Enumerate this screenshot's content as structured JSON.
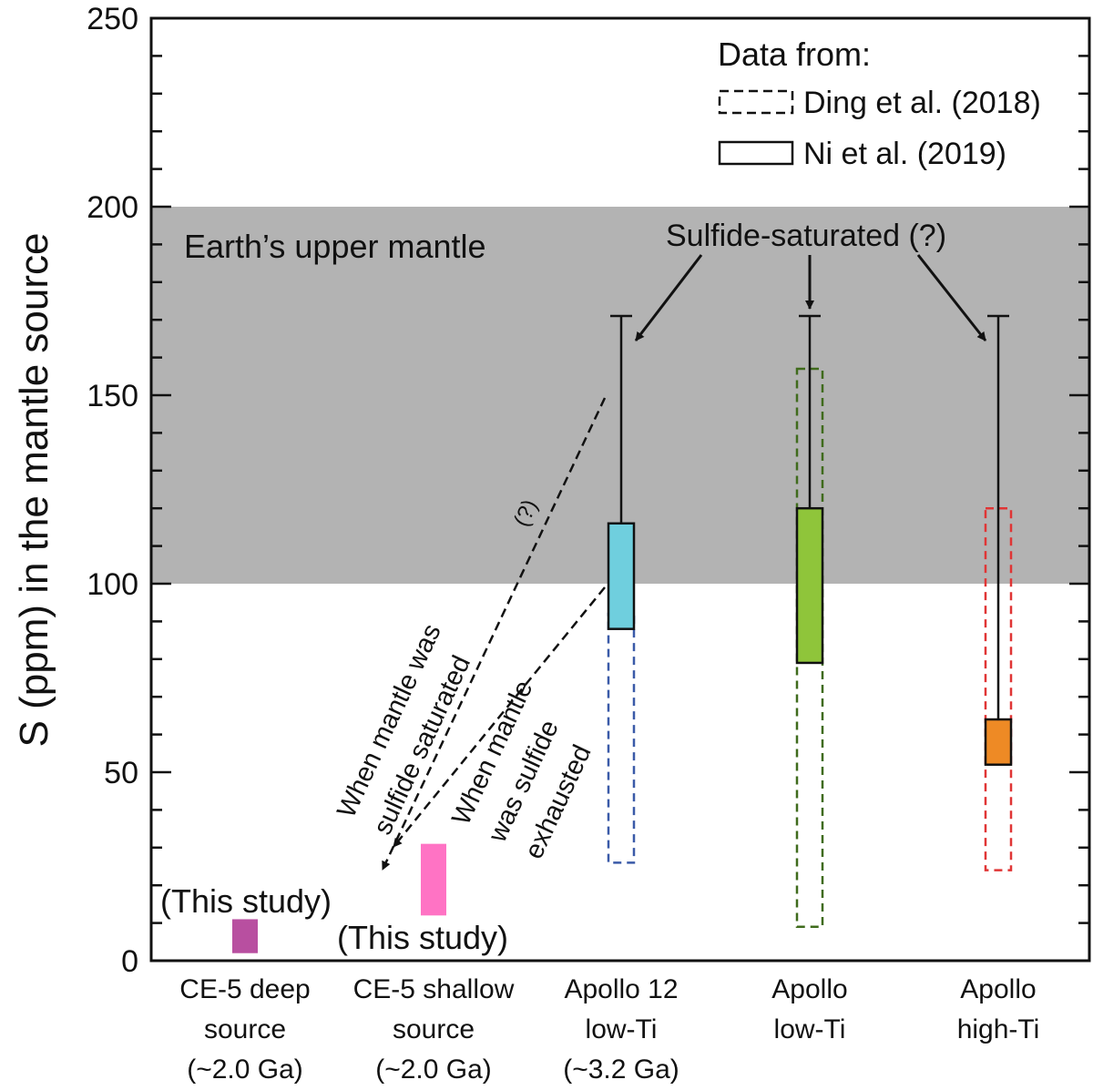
{
  "chart_data": {
    "type": "bar",
    "ylabel": "S (ppm) in the mantle source",
    "ylim": [
      0,
      250
    ],
    "yticks": [
      "0",
      "50",
      "100",
      "150",
      "200",
      "250"
    ],
    "categories": [
      {
        "lines": [
          "CE-5 deep",
          "source",
          "(~2.0 Ga)"
        ]
      },
      {
        "lines": [
          "CE-5 shallow",
          "source",
          "(~2.0 Ga)"
        ]
      },
      {
        "lines": [
          "Apollo 12",
          "low-Ti",
          "(~3.2 Ga)"
        ]
      },
      {
        "lines": [
          "Apollo",
          "low-Ti"
        ]
      },
      {
        "lines": [
          "Apollo",
          "high-Ti"
        ]
      }
    ],
    "band": {
      "label": "Earth’s upper mantle",
      "range": [
        100,
        200
      ],
      "color": "#b3b3b3"
    },
    "this_study": [
      {
        "category": 0,
        "range": [
          2,
          11
        ],
        "color": "#b84fa0",
        "label": "(This study)"
      },
      {
        "category": 1,
        "range": [
          12,
          31
        ],
        "color": "#ff73c4",
        "label": "(This study)"
      }
    ],
    "ding_2018": [
      {
        "category": 2,
        "range": [
          26,
          92
        ],
        "color": "#3a5aa8"
      },
      {
        "category": 3,
        "range": [
          9,
          157
        ],
        "color": "#3f6b1c"
      },
      {
        "category": 4,
        "range": [
          24,
          120
        ],
        "color": "#e03535"
      }
    ],
    "ni_2019": [
      {
        "category": 2,
        "range": [
          88,
          116
        ],
        "color": "#6fcfde",
        "whisker": [
          102,
          171
        ]
      },
      {
        "category": 3,
        "range": [
          79,
          120
        ],
        "color": "#8fc53a",
        "whisker": [
          102,
          171
        ]
      },
      {
        "category": 4,
        "range": [
          52,
          64
        ],
        "color": "#ee8a25",
        "whisker": [
          64,
          171
        ]
      }
    ],
    "legend": {
      "title": "Data from:",
      "entries": [
        {
          "label": "Ding et al. (2018)",
          "style": "dashed"
        },
        {
          "label": "Ni et al. (2019)",
          "style": "solid"
        }
      ]
    },
    "annotations": {
      "sulfide_saturated": "Sulfide-saturated (?)",
      "question": "(?)",
      "saturated_lines": [
        "When mantle was",
        "sulfide saturated"
      ],
      "exhausted_lines": [
        "When mantle",
        "was sulfide",
        "exhausted"
      ]
    }
  }
}
